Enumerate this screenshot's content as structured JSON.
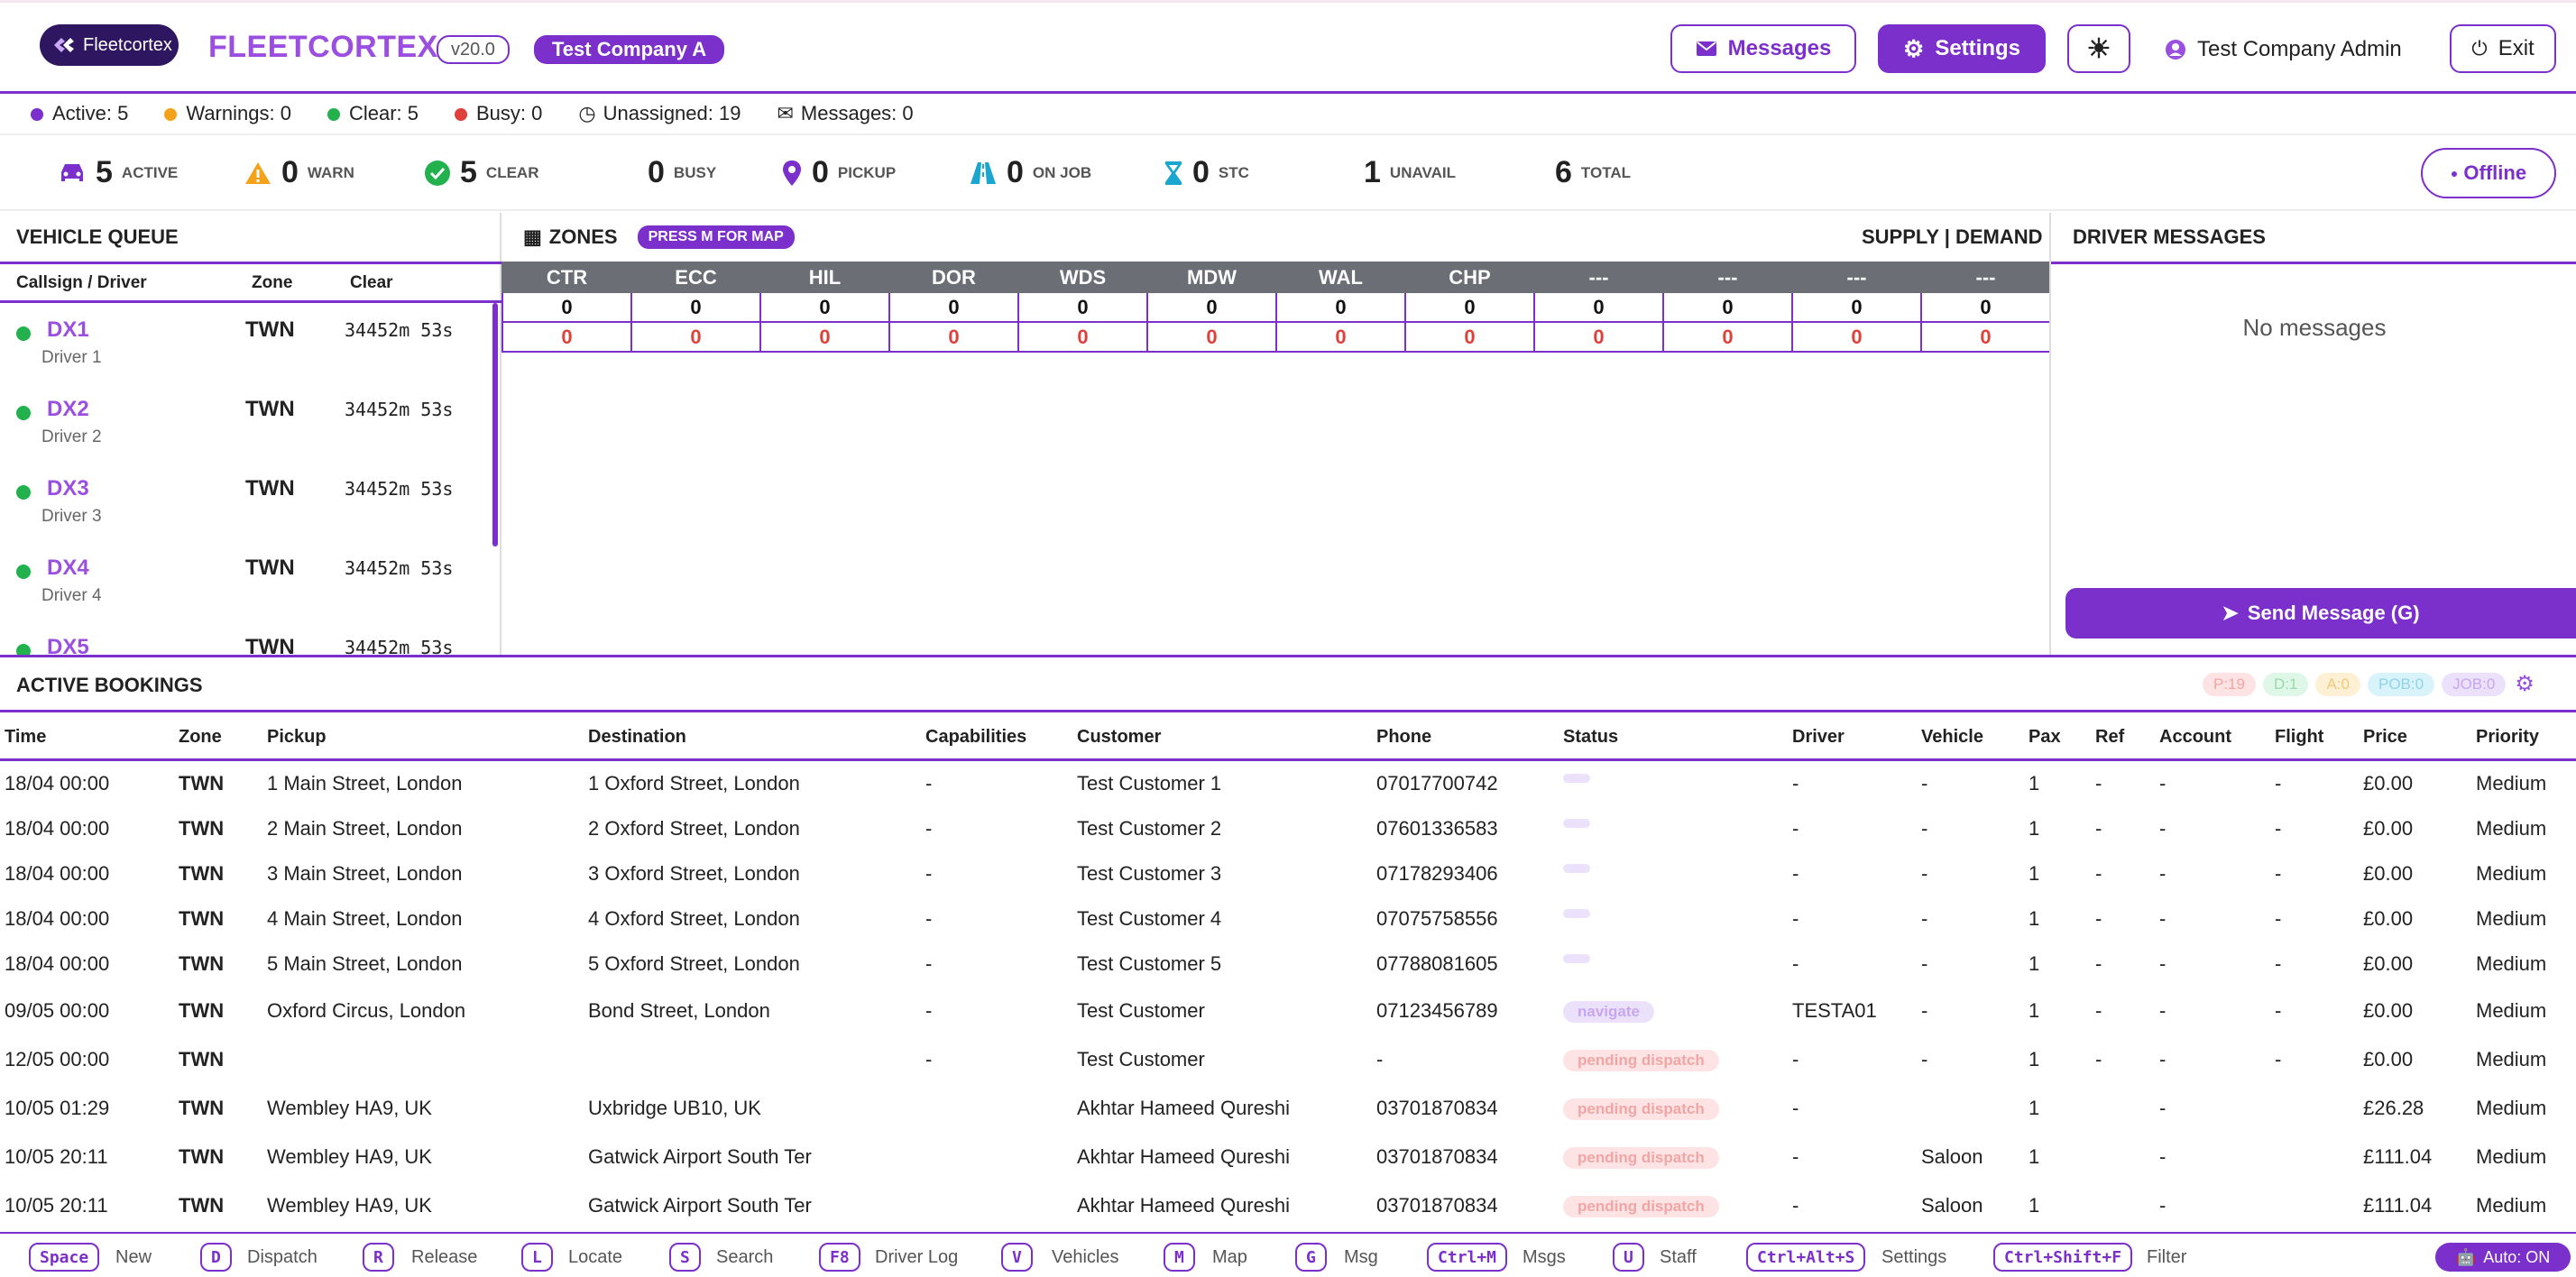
{
  "header": {
    "logo_text": "Fleetcortex",
    "brand": "FLEETCORTEX",
    "version": "v20.0",
    "company": "Test Company A",
    "messages_label": "Messages",
    "settings_label": "Settings",
    "user_label": "Test Company Admin",
    "exit_label": "Exit"
  },
  "status_line": [
    {
      "label": "Active: 5",
      "color": "#7b2fcb"
    },
    {
      "label": "Warnings: 0",
      "color": "#f5a21b"
    },
    {
      "label": "Clear: 5",
      "color": "#22b14c"
    },
    {
      "label": "Busy: 0",
      "color": "#e0403a"
    },
    {
      "label": "Unassigned: 19",
      "icon": "clock-icon"
    },
    {
      "label": "Messages: 0",
      "icon": "envelope-icon"
    }
  ],
  "counts": [
    {
      "num": "5",
      "label": "ACTIVE",
      "icon": "car-icon"
    },
    {
      "num": "0",
      "label": "WARN",
      "icon": "warning-icon"
    },
    {
      "num": "5",
      "label": "CLEAR",
      "icon": "check-circle-icon"
    },
    {
      "num": "0",
      "label": "BUSY"
    },
    {
      "num": "0",
      "label": "PICKUP",
      "icon": "map-pin-icon"
    },
    {
      "num": "0",
      "label": "ON JOB",
      "icon": "road-icon"
    },
    {
      "num": "0",
      "label": "STC",
      "icon": "hourglass-icon"
    },
    {
      "num": "1",
      "label": "UNAVAIL"
    },
    {
      "num": "6",
      "label": "TOTAL"
    }
  ],
  "offline_label": "Offline",
  "vehicle_queue": {
    "title": "VEHICLE QUEUE",
    "col_callsign": "Callsign / Driver",
    "col_zone": "Zone",
    "col_clear": "Clear",
    "rows": [
      {
        "callsign": "DX1",
        "driver": "Driver 1",
        "zone": "TWN",
        "clear": "34452m 53s"
      },
      {
        "callsign": "DX2",
        "driver": "Driver 2",
        "zone": "TWN",
        "clear": "34452m 53s"
      },
      {
        "callsign": "DX3",
        "driver": "Driver 3",
        "zone": "TWN",
        "clear": "34452m 53s"
      },
      {
        "callsign": "DX4",
        "driver": "Driver 4",
        "zone": "TWN",
        "clear": "34452m 53s"
      },
      {
        "callsign": "DX5",
        "driver": "",
        "zone": "TWN",
        "clear": "34452m 53s"
      }
    ]
  },
  "zones": {
    "title": "ZONES",
    "press_label": "PRESS M FOR MAP",
    "supply_demand": "SUPPLY | DEMAND",
    "names": [
      "CTR",
      "ECC",
      "HIL",
      "DOR",
      "WDS",
      "MDW",
      "WAL",
      "CHP",
      "---",
      "---",
      "---",
      "---"
    ],
    "supply": [
      "0",
      "0",
      "0",
      "0",
      "0",
      "0",
      "0",
      "0",
      "0",
      "0",
      "0",
      "0"
    ],
    "demand": [
      "0",
      "0",
      "0",
      "0",
      "0",
      "0",
      "0",
      "0",
      "0",
      "0",
      "0",
      "0"
    ]
  },
  "driver_messages": {
    "title": "DRIVER MESSAGES",
    "empty": "No messages",
    "send_label": "Send Message (G)"
  },
  "bookings": {
    "title": "ACTIVE BOOKINGS",
    "pills": [
      {
        "label": "P:19",
        "bg": "#fde3e3",
        "fg": "#f2a5a5"
      },
      {
        "label": "D:1",
        "bg": "#def7e6",
        "fg": "#9ad9ad"
      },
      {
        "label": "A:0",
        "bg": "#fdf0d5",
        "fg": "#f2c77a"
      },
      {
        "label": "POB:0",
        "bg": "#d9f3fb",
        "fg": "#8fd3ea"
      },
      {
        "label": "JOB:0",
        "bg": "#ece1fb",
        "fg": "#c8a7ef"
      }
    ],
    "columns": [
      "Time",
      "Zone",
      "Pickup",
      "Destination",
      "Capabilities",
      "Customer",
      "Phone",
      "Status",
      "Driver",
      "Vehicle",
      "Pax",
      "Ref",
      "Account",
      "Flight",
      "Price",
      "Priority"
    ],
    "rows": [
      {
        "time": "18/04 00:00",
        "zone": "TWN",
        "pickup": "1 Main Street, London",
        "dest": "1 Oxford Street, London",
        "cap": "-",
        "customer": "Test Customer 1",
        "phone": "07017700742",
        "status": "",
        "driver": "-",
        "vehicle": "-",
        "pax": "1",
        "ref": "-",
        "account": "-",
        "flight": "-",
        "price": "£0.00",
        "priority": "Medium"
      },
      {
        "time": "18/04 00:00",
        "zone": "TWN",
        "pickup": "2 Main Street, London",
        "dest": "2 Oxford Street, London",
        "cap": "-",
        "customer": "Test Customer 2",
        "phone": "07601336583",
        "status": "",
        "driver": "-",
        "vehicle": "-",
        "pax": "1",
        "ref": "-",
        "account": "-",
        "flight": "-",
        "price": "£0.00",
        "priority": "Medium"
      },
      {
        "time": "18/04 00:00",
        "zone": "TWN",
        "pickup": "3 Main Street, London",
        "dest": "3 Oxford Street, London",
        "cap": "-",
        "customer": "Test Customer 3",
        "phone": "07178293406",
        "status": "",
        "driver": "-",
        "vehicle": "-",
        "pax": "1",
        "ref": "-",
        "account": "-",
        "flight": "-",
        "price": "£0.00",
        "priority": "Medium"
      },
      {
        "time": "18/04 00:00",
        "zone": "TWN",
        "pickup": "4 Main Street, London",
        "dest": "4 Oxford Street, London",
        "cap": "-",
        "customer": "Test Customer 4",
        "phone": "07075758556",
        "status": "",
        "driver": "-",
        "vehicle": "-",
        "pax": "1",
        "ref": "-",
        "account": "-",
        "flight": "-",
        "price": "£0.00",
        "priority": "Medium"
      },
      {
        "time": "18/04 00:00",
        "zone": "TWN",
        "pickup": "5 Main Street, London",
        "dest": "5 Oxford Street, London",
        "cap": "-",
        "customer": "Test Customer 5",
        "phone": "07788081605",
        "status": "",
        "driver": "-",
        "vehicle": "-",
        "pax": "1",
        "ref": "-",
        "account": "-",
        "flight": "-",
        "price": "£0.00",
        "priority": "Medium"
      },
      {
        "time": "09/05 00:00",
        "zone": "TWN",
        "pickup": "Oxford Circus, London",
        "dest": "Bond Street, London",
        "cap": "-",
        "customer": "Test Customer",
        "phone": "07123456789",
        "status": "navigate",
        "driver": "TESTA01",
        "vehicle": "-",
        "pax": "1",
        "ref": "-",
        "account": "-",
        "flight": "-",
        "price": "£0.00",
        "priority": "Medium"
      },
      {
        "time": "12/05 00:00",
        "zone": "TWN",
        "pickup": "",
        "dest": "",
        "cap": "-",
        "customer": "Test Customer",
        "phone": "-",
        "status": "pending dispatch",
        "driver": "-",
        "vehicle": "-",
        "pax": "1",
        "ref": "-",
        "account": "-",
        "flight": "-",
        "price": "£0.00",
        "priority": "Medium"
      },
      {
        "time": "10/05 01:29",
        "zone": "TWN",
        "pickup": "Wembley HA9, UK",
        "dest": "Uxbridge UB10, UK",
        "cap": "",
        "customer": "Akhtar Hameed Qureshi",
        "phone": "03701870834",
        "status": "pending dispatch",
        "driver": "-",
        "vehicle": "",
        "pax": "1",
        "ref": "",
        "account": "-",
        "flight": "",
        "price": "£26.28",
        "priority": "Medium"
      },
      {
        "time": "10/05 20:11",
        "zone": "TWN",
        "pickup": "Wembley HA9, UK",
        "dest": "Gatwick Airport South Ter",
        "cap": "",
        "customer": "Akhtar Hameed Qureshi",
        "phone": "03701870834",
        "status": "pending dispatch",
        "driver": "-",
        "vehicle": "Saloon",
        "pax": "1",
        "ref": "",
        "account": "-",
        "flight": "",
        "price": "£111.04",
        "priority": "Medium"
      },
      {
        "time": "10/05 20:11",
        "zone": "TWN",
        "pickup": "Wembley HA9, UK",
        "dest": "Gatwick Airport South Ter",
        "cap": "",
        "customer": "Akhtar Hameed Qureshi",
        "phone": "03701870834",
        "status": "pending dispatch",
        "driver": "-",
        "vehicle": "Saloon",
        "pax": "1",
        "ref": "",
        "account": "-",
        "flight": "",
        "price": "£111.04",
        "priority": "Medium"
      }
    ]
  },
  "shortcuts": [
    {
      "key": "Space",
      "label": "New"
    },
    {
      "key": "D",
      "label": "Dispatch"
    },
    {
      "key": "R",
      "label": "Release"
    },
    {
      "key": "L",
      "label": "Locate"
    },
    {
      "key": "S",
      "label": "Search"
    },
    {
      "key": "F8",
      "label": "Driver Log"
    },
    {
      "key": "V",
      "label": "Vehicles"
    },
    {
      "key": "M",
      "label": "Map"
    },
    {
      "key": "G",
      "label": "Msg"
    },
    {
      "key": "Ctrl+M",
      "label": "Msgs"
    },
    {
      "key": "U",
      "label": "Staff"
    },
    {
      "key": "Ctrl+Alt+S",
      "label": "Settings"
    },
    {
      "key": "Ctrl+Shift+F",
      "label": "Filter"
    }
  ],
  "auto_label": "Auto: ON"
}
